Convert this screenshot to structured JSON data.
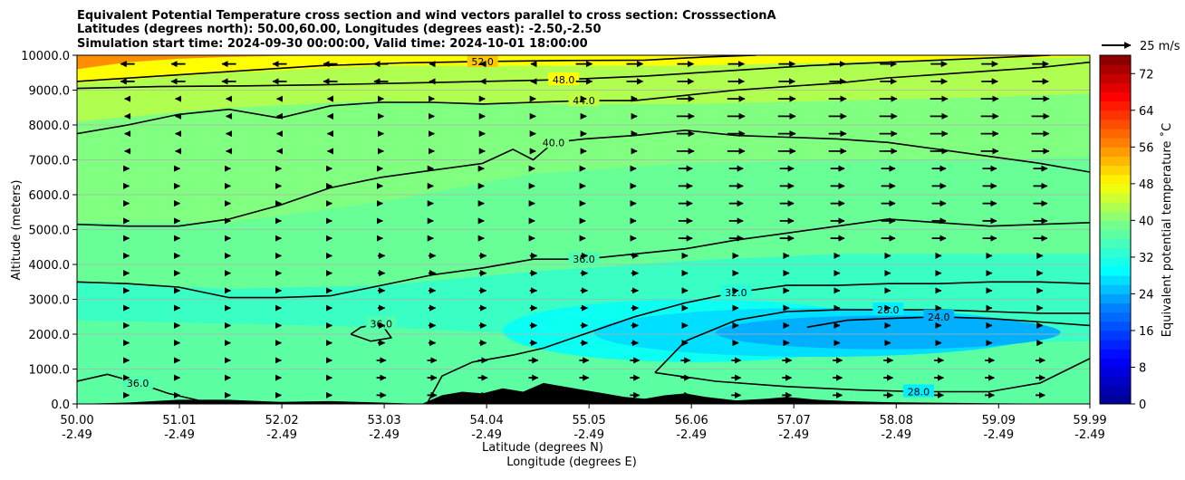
{
  "chart_data": {
    "type": "contour",
    "title_lines": [
      "Equivalent Potential Temperature cross section and wind vectors parallel to cross section: CrosssectionA",
      "Latitudes (degrees north): 50.00,60.00, Longitudes (degrees east): -2.50,-2.50",
      "Simulation start time: 2024-09-30 00:00:00, Valid time: 2024-10-01 18:00:00"
    ],
    "ylabel": "Altitude (meters)",
    "xlabel_lines": [
      "Latitude (degrees N)",
      "Longitude (degrees E)"
    ],
    "ylim": [
      0,
      10000
    ],
    "xlim": [
      50.0,
      59.99
    ],
    "y_ticks": [
      "0.0",
      "1000.0",
      "2000.0",
      "3000.0",
      "4000.0",
      "5000.0",
      "6000.0",
      "7000.0",
      "8000.0",
      "9000.0",
      "10000.0"
    ],
    "y_tick_values": [
      0,
      1000,
      2000,
      3000,
      4000,
      5000,
      6000,
      7000,
      8000,
      9000,
      10000
    ],
    "x_ticks": [
      {
        "value": 50.0,
        "lat": "50.00",
        "lon": "-2.49"
      },
      {
        "value": 51.01,
        "lat": "51.01",
        "lon": "-2.49"
      },
      {
        "value": 52.02,
        "lat": "52.02",
        "lon": "-2.49"
      },
      {
        "value": 53.03,
        "lat": "53.03",
        "lon": "-2.49"
      },
      {
        "value": 54.04,
        "lat": "54.04",
        "lon": "-2.49"
      },
      {
        "value": 55.05,
        "lat": "55.05",
        "lon": "-2.49"
      },
      {
        "value": 56.06,
        "lat": "56.06",
        "lon": "-2.49"
      },
      {
        "value": 57.07,
        "lat": "57.07",
        "lon": "-2.49"
      },
      {
        "value": 58.08,
        "lat": "58.08",
        "lon": "-2.49"
      },
      {
        "value": 59.09,
        "lat": "59.09",
        "lon": "-2.49"
      },
      {
        "value": 59.99,
        "lat": "59.99",
        "lon": "-2.49"
      }
    ],
    "grid": "horizontal",
    "colorbar": {
      "label": "Equivalent potential temperature ˚C",
      "range": [
        0,
        76
      ],
      "ticks": [
        "0",
        "8",
        "16",
        "24",
        "32",
        "40",
        "48",
        "56",
        "64",
        "72"
      ],
      "tick_values": [
        0,
        8,
        16,
        24,
        32,
        40,
        48,
        56,
        64,
        72
      ],
      "stops": [
        {
          "v": 0,
          "c": "#00008f"
        },
        {
          "v": 10,
          "c": "#0000ff"
        },
        {
          "v": 21,
          "c": "#0080ff"
        },
        {
          "v": 29,
          "c": "#00ffff"
        },
        {
          "v": 40,
          "c": "#80ff80"
        },
        {
          "v": 48,
          "c": "#ffff00"
        },
        {
          "v": 57,
          "c": "#ff8000"
        },
        {
          "v": 67,
          "c": "#ff0000"
        },
        {
          "v": 76,
          "c": "#800000"
        }
      ]
    },
    "field_bands": [
      {
        "theta": 37,
        "xs": [
          50.0,
          51.5,
          53.0,
          54.5,
          56.0,
          57.5,
          59.0,
          59.99
        ],
        "alt": [
          280,
          300,
          320,
          300,
          250,
          200,
          200,
          220
        ]
      },
      {
        "theta": 34,
        "xs": [
          50.0,
          51.5,
          53.0,
          54.5,
          55.5,
          56.5,
          58.0,
          59.99
        ],
        "alt": [
          2400,
          2300,
          2200,
          2000,
          1800,
          1600,
          1700,
          1800
        ]
      },
      {
        "theta": 38,
        "xs": [
          50.0,
          51.5,
          53.0,
          54.5,
          56.0,
          57.5,
          59.0,
          59.99
        ],
        "alt": [
          3500,
          3300,
          3400,
          3800,
          4100,
          4300,
          4300,
          4300
        ]
      },
      {
        "theta": 40,
        "xs": [
          50.0,
          51.5,
          53.0,
          54.5,
          56.0,
          57.5,
          59.0,
          59.99
        ],
        "alt": [
          5200,
          5200,
          5800,
          6600,
          6900,
          7000,
          7000,
          7100
        ]
      },
      {
        "theta": 43,
        "xs": [
          50.0,
          51.5,
          53.0,
          54.5,
          56.0,
          57.5,
          59.0,
          59.99
        ],
        "alt": [
          8100,
          8500,
          8700,
          8600,
          8600,
          8700,
          8800,
          8900
        ]
      },
      {
        "theta": 48,
        "xs": [
          50.0,
          51.5,
          53.0,
          54.5,
          56.0,
          57.5,
          59.0,
          59.99
        ],
        "alt": [
          9200,
          9500,
          9700,
          9700,
          9700,
          9800,
          9900,
          9950
        ]
      },
      {
        "theta": 56,
        "xs": [
          50.0,
          50.5,
          51.0,
          51.5,
          52.0,
          52.5
        ],
        "alt": [
          9600,
          9800,
          9900,
          9950,
          9980,
          10000
        ]
      }
    ],
    "field_blobs": [
      {
        "theta": 30,
        "center": [
          56.1,
          2100
        ],
        "radii": [
          1.9,
          900
        ]
      },
      {
        "theta": 27,
        "center": [
          57.3,
          2050
        ],
        "radii": [
          2.2,
          700
        ]
      },
      {
        "theta": 24,
        "center": [
          58.0,
          2050
        ],
        "radii": [
          1.7,
          480
        ]
      }
    ],
    "contours": [
      {
        "level": 52,
        "label": "52.0",
        "x": [
          50.0,
          50.8,
          51.6,
          52.4,
          53.2,
          54.0,
          54.8,
          55.6,
          56.2,
          56.7
        ],
        "y": [
          9250,
          9400,
          9550,
          9700,
          9780,
          9820,
          9850,
          9860,
          9950,
          10000
        ]
      },
      {
        "level": 48,
        "label": "48.0",
        "x": [
          50.0,
          50.8,
          51.6,
          52.4,
          53.2,
          54.0,
          54.8,
          55.6,
          56.4,
          57.2,
          58.0,
          58.8,
          59.6
        ],
        "y": [
          9050,
          9100,
          9120,
          9150,
          9200,
          9250,
          9300,
          9400,
          9550,
          9700,
          9800,
          9900,
          10000
        ]
      },
      {
        "level": 44,
        "label": "44.0",
        "x": [
          50.0,
          50.5,
          51.0,
          51.5,
          52.0,
          52.5,
          53.0,
          53.5,
          54.0,
          54.5,
          55.0,
          55.5,
          56.0,
          56.5,
          57.0,
          57.5,
          58.0,
          58.5,
          59.0,
          59.5,
          59.99
        ],
        "y": [
          7750,
          8000,
          8300,
          8450,
          8200,
          8550,
          8650,
          8650,
          8600,
          8650,
          8700,
          8700,
          8850,
          9000,
          9100,
          9200,
          9350,
          9450,
          9550,
          9650,
          9800
        ]
      },
      {
        "level": 40,
        "label": "40.0",
        "x": [
          50.0,
          50.5,
          51.0,
          51.5,
          52.0,
          52.5,
          53.0,
          53.5,
          54.0,
          54.3,
          54.5,
          54.7,
          55.0,
          55.5,
          56.0,
          56.5,
          57.0,
          57.5,
          58.0,
          58.5,
          59.0,
          59.5,
          59.99
        ],
        "y": [
          5150,
          5100,
          5100,
          5300,
          5700,
          6200,
          6500,
          6700,
          6900,
          7300,
          7000,
          7500,
          7600,
          7700,
          7850,
          7700,
          7650,
          7600,
          7500,
          7300,
          7100,
          6900,
          6650
        ]
      },
      {
        "level": 36,
        "label": "36.0",
        "x": [
          50.0,
          50.5,
          51.0,
          51.5,
          52.0,
          52.5,
          53.0,
          53.5,
          54.0,
          54.5,
          55.0,
          55.5,
          56.0,
          56.5,
          57.0,
          57.5,
          58.0,
          58.5,
          59.0,
          59.5,
          59.99
        ],
        "y": [
          3500,
          3450,
          3350,
          3050,
          3050,
          3100,
          3400,
          3700,
          3900,
          4150,
          4150,
          4300,
          4450,
          4700,
          4900,
          5100,
          5300,
          5200,
          5100,
          5150,
          5200
        ]
      },
      {
        "level": 36,
        "label": "36.0",
        "x": [
          52.7,
          52.9,
          53.1,
          53.0,
          52.8,
          52.7
        ],
        "y": [
          2000,
          1800,
          1900,
          2300,
          2200,
          2000
        ]
      },
      {
        "level": 36,
        "label": "36.0",
        "x": [
          50.0,
          50.3,
          50.6,
          50.9,
          51.2
        ],
        "y": [
          650,
          850,
          600,
          300,
          100
        ]
      },
      {
        "level": 32,
        "label": "32.0",
        "x": [
          53.45,
          53.6,
          53.9,
          54.3,
          54.6,
          55.0,
          55.5,
          56.0,
          56.5,
          57.0,
          57.5,
          58.0,
          58.5,
          59.0,
          59.5,
          59.99
        ],
        "y": [
          0,
          800,
          1200,
          1400,
          1600,
          2000,
          2500,
          2900,
          3200,
          3400,
          3400,
          3450,
          3450,
          3500,
          3500,
          3450
        ]
      },
      {
        "level": 28,
        "label": "28.0",
        "x": [
          55.7,
          56.0,
          56.5,
          57.0,
          57.5,
          58.0,
          58.5,
          59.0,
          59.5,
          59.99
        ],
        "y": [
          900,
          1800,
          2400,
          2650,
          2700,
          2700,
          2700,
          2650,
          2600,
          2600
        ]
      },
      {
        "level": 28,
        "label": "28.0",
        "x": [
          55.7,
          56.3,
          57.0,
          57.7,
          58.3,
          59.0,
          59.5,
          59.99
        ],
        "y": [
          900,
          650,
          500,
          400,
          350,
          350,
          600,
          1300
        ]
      },
      {
        "level": 24,
        "label": "24.0",
        "x": [
          57.2,
          57.6,
          58.0,
          58.5,
          59.0,
          59.5,
          59.99
        ],
        "y": [
          2200,
          2400,
          2450,
          2500,
          2450,
          2350,
          2250
        ]
      }
    ],
    "topography": {
      "x": [
        50.0,
        50.5,
        51.0,
        51.5,
        52.0,
        52.5,
        53.0,
        53.4,
        53.6,
        53.8,
        54.0,
        54.2,
        54.4,
        54.6,
        54.8,
        55.0,
        55.2,
        55.4,
        55.6,
        55.8,
        56.0,
        56.2,
        56.5,
        56.8,
        57.0,
        57.3,
        57.6,
        58.0,
        59.0,
        59.99
      ],
      "y": [
        0,
        40,
        120,
        120,
        60,
        80,
        40,
        0,
        250,
        350,
        300,
        450,
        350,
        600,
        500,
        400,
        300,
        200,
        150,
        250,
        300,
        200,
        100,
        150,
        200,
        120,
        80,
        50,
        20,
        0
      ]
    },
    "wind": {
      "reference_label": "25 m/s",
      "reference_speed": 25,
      "levels": [
        250,
        750,
        1250,
        1750,
        2250,
        2750,
        3250,
        3750,
        4250,
        4750,
        5250,
        5750,
        6250,
        6750,
        7250,
        7750,
        8250,
        8750,
        9250,
        9750
      ],
      "columns": [
        50.5,
        51.0,
        51.5,
        52.0,
        52.5,
        53.0,
        53.5,
        54.0,
        54.5,
        55.0,
        55.5,
        56.0,
        56.5,
        57.0,
        57.5,
        58.0,
        58.5,
        59.0,
        59.5
      ]
    }
  }
}
